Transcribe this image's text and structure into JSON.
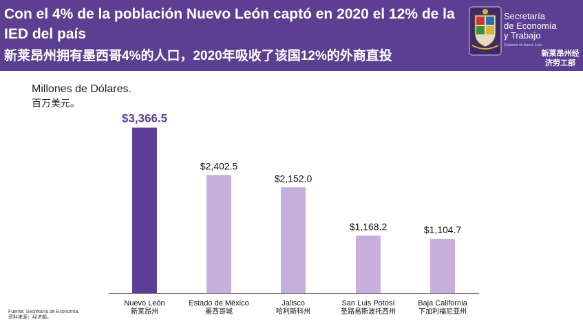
{
  "header": {
    "title_es": "Con el 4% de la población Nuevo León captó en 2020 el 12% de la IED del país",
    "title_zh": "新莱昂州拥有墨西哥4%的人口，2020年吸收了该国12%的外商直投",
    "logo": {
      "line1": "Secretaría",
      "line2": "de Economía",
      "line3": "y Trabajo",
      "small": "Gobierno de Nuevo León",
      "office_zh_1": "新莱昂州经",
      "office_zh_2": "济劳工部"
    }
  },
  "colors": {
    "header_bg": "#5c3f91",
    "highlight_bar": "#5a3f95",
    "other_bar": "#c8aedc",
    "highlight_label": "#5a3f95"
  },
  "chart_data": {
    "type": "bar",
    "unit_es": "Millones de Dólares.",
    "unit_zh": "百万美元。",
    "categories": [
      {
        "label_es": "Nuevo León",
        "label_zh": "新莱昂州"
      },
      {
        "label_es": "Estado de México",
        "label_zh": "墨西哥城"
      },
      {
        "label_es": "Jalisco",
        "label_zh": "哈利斯科州"
      },
      {
        "label_es": "San Luis Potosí",
        "label_zh": "圣路易斯波托西州"
      },
      {
        "label_es": "Baja California",
        "label_zh": "下加利福尼亚州"
      }
    ],
    "values": [
      3366.5,
      2402.5,
      2152.0,
      1168.2,
      1104.7
    ],
    "value_labels": [
      "$3,366.5",
      "$2,402.5",
      "$2,152.0",
      "$1,168.2",
      "$1,104.7"
    ],
    "highlight_index": 0,
    "ylim": [
      0,
      3500
    ],
    "grid": false,
    "legend": "none"
  },
  "footer": {
    "source_es": "Fuente: Secretaría de Economía.",
    "source_zh": "资料来源：经济部。"
  }
}
